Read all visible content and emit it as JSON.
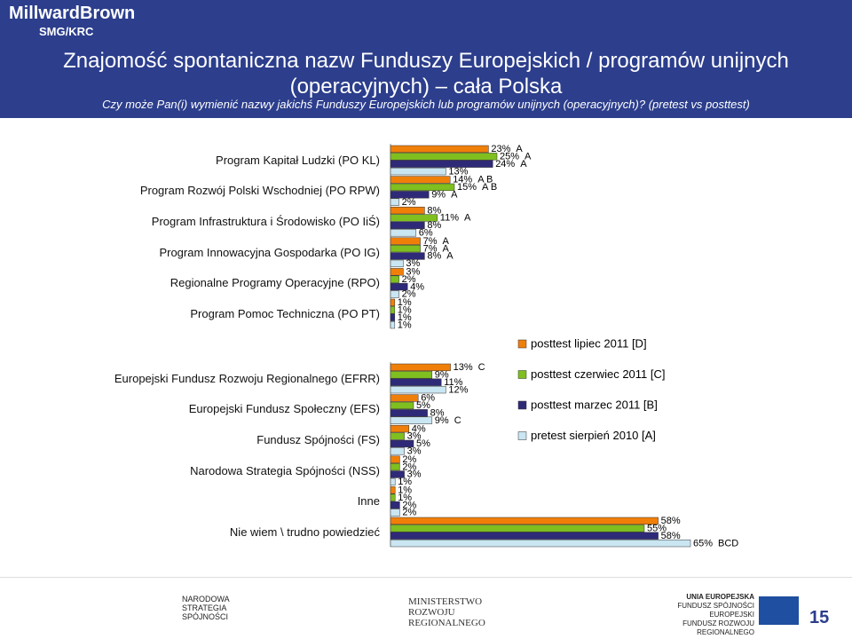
{
  "header": {
    "logo": "MillwardBrown",
    "logo_sub": "SMG/KRC",
    "title": "Znajomość spontaniczna nazw Funduszy Europejskich / programów unijnych (operacyjnych) – cała Polska",
    "subtitle": "Czy może Pan(i) wymienić nazwy jakichś Funduszy Europejskich lub programów unijnych (operacyjnych)? (pretest vs posttest)"
  },
  "chart_data": [
    {
      "type": "bar",
      "orientation": "horizontal",
      "categories": [
        "Program Kapitał Ludzki (PO KL)",
        "Program Rozwój Polski Wschodniej (PO RPW)",
        "Program Infrastruktura i Środowisko (PO IiŚ)",
        "Program Innowacyjna Gospodarka (PO IG)",
        "Regionalne Programy Operacyjne (RPO)",
        "Program Pomoc Techniczna (PO PT)"
      ],
      "series": [
        {
          "name": "posttest lipiec 2011 [D]",
          "color": "#f07f09",
          "values": [
            23,
            14,
            8,
            7,
            3,
            1
          ],
          "value_labels": [
            "23%",
            "14%",
            "8%",
            "7%",
            "3%",
            "1%"
          ],
          "annotations": [
            "A",
            "A B",
            null,
            "A",
            null,
            null
          ]
        },
        {
          "name": "posttest czerwiec 2011 [C]",
          "color": "#7fbf1f",
          "values": [
            25,
            15,
            11,
            7,
            2,
            1
          ],
          "value_labels": [
            "25%",
            "15%",
            "11%",
            "7%",
            "2%",
            "1%"
          ],
          "annotations": [
            "A",
            "A B",
            "A",
            "A",
            null,
            null
          ]
        },
        {
          "name": "posttest marzec 2011 [B]",
          "color": "#2e2a78",
          "values": [
            24,
            9,
            8,
            8,
            4,
            1
          ],
          "value_labels": [
            "24%",
            "9%",
            "8%",
            "8%",
            "4%",
            "1%"
          ],
          "annotations": [
            "A",
            "A",
            null,
            "A",
            null,
            null
          ]
        },
        {
          "name": "pretest sierpień 2010 [A]",
          "color": "#c9e6f2",
          "values": [
            13,
            2,
            6,
            3,
            2,
            1
          ],
          "value_labels": [
            "13%",
            "2%",
            "6%",
            "3%",
            "2%",
            "1%"
          ],
          "annotations": [
            null,
            null,
            null,
            null,
            null,
            null
          ]
        }
      ]
    },
    {
      "type": "bar",
      "orientation": "horizontal",
      "categories": [
        "Europejski Fundusz Rozwoju Regionalnego (EFRR)",
        "Europejski Fundusz Społeczny (EFS)",
        "Fundusz Spójności (FS)",
        "Narodowa Strategia Spójności (NSS)",
        "Inne",
        "Nie wiem \\ trudno powiedzieć"
      ],
      "series": [
        {
          "color": "#f07f09",
          "values": [
            13,
            6,
            4,
            2,
            1,
            58
          ],
          "value_labels": [
            "13%",
            "6%",
            "4%",
            "2%",
            "1%",
            "58%"
          ],
          "annotations": [
            "C",
            null,
            null,
            null,
            null,
            null
          ]
        },
        {
          "color": "#7fbf1f",
          "values": [
            9,
            5,
            3,
            2,
            1,
            55
          ],
          "value_labels": [
            "9%",
            "5%",
            "3%",
            "2%",
            "1%",
            "55%"
          ],
          "annotations": [
            null,
            null,
            null,
            null,
            null,
            null
          ]
        },
        {
          "color": "#2e2a78",
          "values": [
            11,
            8,
            5,
            3,
            2,
            58
          ],
          "value_labels": [
            "11%",
            "8%",
            "5%",
            "3%",
            "2%",
            "58%"
          ],
          "annotations": [
            null,
            null,
            null,
            null,
            null,
            null
          ]
        },
        {
          "color": "#c9e6f2",
          "values": [
            12,
            9,
            3,
            1,
            2,
            65
          ],
          "value_labels": [
            "12%",
            "9%",
            "3%",
            "1%",
            "2%",
            "65%"
          ],
          "annotations": [
            null,
            "C",
            null,
            null,
            null,
            "BCD"
          ]
        }
      ]
    }
  ],
  "footer": {
    "nss": "NARODOWA STRATEGIA SPÓJNOŚCI",
    "ministry": "MINISTERSTWO ROZWOJU REGIONALNEGO",
    "eu": "UNIA EUROPEJSKA",
    "eu_fund1": "FUNDUSZ SPÓJNOŚCI",
    "eu_fund2": "EUROPEJSKI FUNDUSZ ROZWOJU REGIONALNEGO",
    "page": "15"
  }
}
